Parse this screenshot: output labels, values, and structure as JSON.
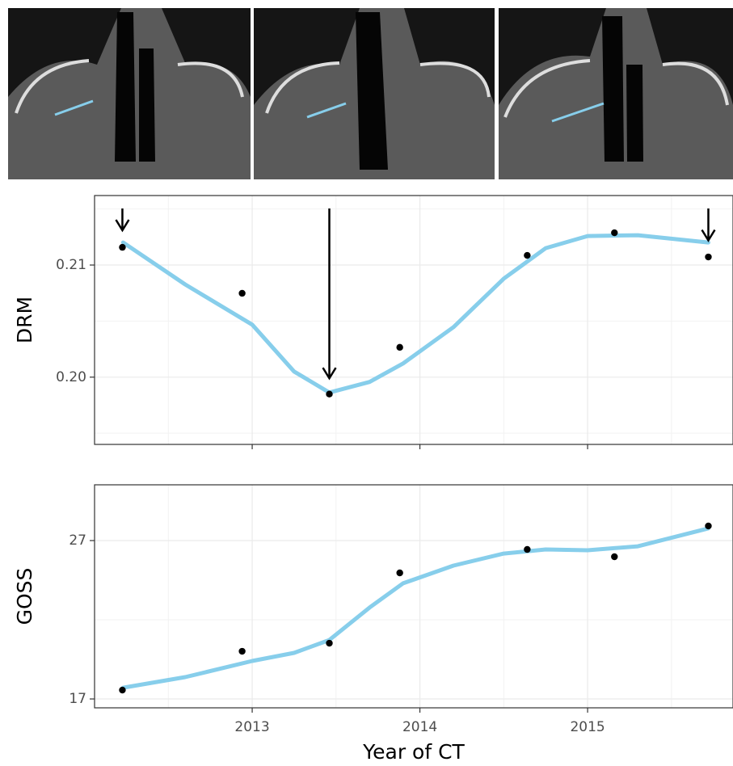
{
  "chart_data": [
    {
      "type": "line",
      "y_label": "DRM",
      "xlim": [
        2012.06,
        2015.867
      ],
      "ylim": [
        0.194,
        0.2162
      ],
      "xticks": [
        2013,
        2014,
        2015
      ],
      "show_xtick_labels": false,
      "yticks": [
        {
          "value": 0.2,
          "label": "0.20"
        },
        0.21
      ],
      "minor_xticks": [
        2012.5,
        2013.5,
        2014.5,
        2015.5
      ],
      "minor_yticks": [
        0.195,
        0.205,
        0.215
      ],
      "grid": true,
      "points": {
        "color": "#000000",
        "x": [
          2012.226,
          2012.94,
          2013.46,
          2013.88,
          2014.64,
          2015.16,
          2015.72
        ],
        "y": [
          0.21158,
          0.20748,
          0.19849,
          0.20266,
          0.21086,
          0.21288,
          0.21072
        ]
      },
      "smooth": {
        "color": "#87ceeb",
        "x": [
          2012.23,
          2012.6,
          2013.0,
          2013.25,
          2013.46,
          2013.7,
          2013.9,
          2014.2,
          2014.5,
          2014.75,
          2015.0,
          2015.3,
          2015.72
        ],
        "y": [
          0.21201,
          0.20827,
          0.20468,
          0.2005,
          0.19863,
          0.19957,
          0.20122,
          0.20446,
          0.20878,
          0.21151,
          0.21259,
          0.21266,
          0.21201
        ]
      },
      "arrows": {
        "x": [
          2012.226,
          2013.46,
          2015.72
        ],
        "y": [
          0.2131,
          0.1999,
          0.2122
        ]
      }
    },
    {
      "type": "line",
      "y_label": "GOSS",
      "x_label": "Year of CT",
      "xlim": [
        2012.06,
        2015.867
      ],
      "ylim": [
        16.44,
        30.52
      ],
      "xticks": [
        2013,
        2014,
        2015
      ],
      "show_xtick_labels": true,
      "yticks": [
        17,
        27
      ],
      "minor_xticks": [
        2012.5,
        2013.5,
        2014.5,
        2015.5
      ],
      "minor_yticks": [
        22
      ],
      "grid": true,
      "points": {
        "color": "#000000",
        "x": [
          2012.226,
          2012.94,
          2013.46,
          2013.88,
          2014.64,
          2015.16,
          2015.72
        ],
        "y": [
          17.56,
          20.01,
          20.52,
          24.96,
          26.44,
          25.98,
          27.92
        ]
      },
      "smooth": {
        "color": "#87ceeb",
        "x": [
          2012.23,
          2012.6,
          2013.0,
          2013.25,
          2013.46,
          2013.7,
          2013.9,
          2014.2,
          2014.5,
          2014.75,
          2015.0,
          2015.3,
          2015.72
        ],
        "y": [
          17.71,
          18.38,
          19.4,
          19.91,
          20.72,
          22.77,
          24.3,
          25.42,
          26.18,
          26.44,
          26.39,
          26.64,
          27.77
        ]
      }
    }
  ]
}
